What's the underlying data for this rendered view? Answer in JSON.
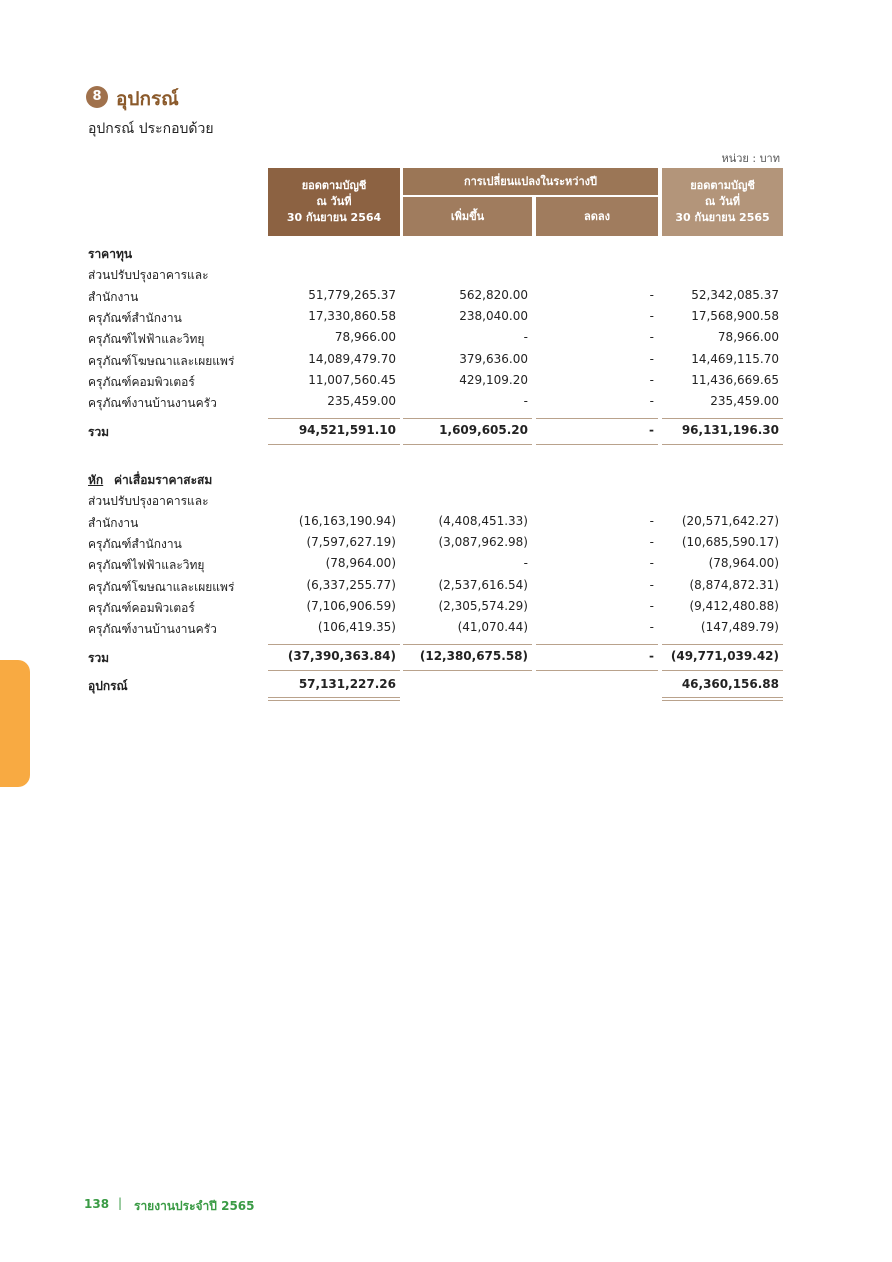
{
  "header": {
    "section_number": "8",
    "title": "อุปกรณ์",
    "subtitle": "อุปกรณ์ ประกอบด้วย",
    "unit": "หน่วย : บาท"
  },
  "table": {
    "columns": {
      "opening": [
        "ยอดตามบัญชี",
        "ณ วันที่",
        "30 กันยายน 2564"
      ],
      "change": "การเปลี่ยนแปลงในระหว่างปี",
      "increase": "เพิ่มขึ้น",
      "decrease": "ลดลง",
      "closing": [
        "ยอดตามบัญชี",
        "ณ วันที่",
        "30 กันยายน 2565"
      ]
    },
    "cost": {
      "title": "ราคาทุน",
      "group": "ส่วนปรับปรุงอาคารและ",
      "rows": [
        [
          "สำนักงาน",
          "51,779,265.37",
          "562,820.00",
          "-",
          "52,342,085.37"
        ],
        [
          "ครุภัณฑ์สำนักงาน",
          "17,330,860.58",
          "238,040.00",
          "-",
          "17,568,900.58"
        ],
        [
          "ครุภัณฑ์ไฟฟ้าและวิทยุ",
          "78,966.00",
          "-",
          "-",
          "78,966.00"
        ],
        [
          "ครุภัณฑ์โฆษณาและเผยแพร่",
          "14,089,479.70",
          "379,636.00",
          "-",
          "14,469,115.70"
        ],
        [
          "ครุภัณฑ์คอมพิวเตอร์",
          "11,007,560.45",
          "429,109.20",
          "-",
          "11,436,669.65"
        ],
        [
          "ครุภัณฑ์งานบ้านงานครัว",
          "235,459.00",
          "-",
          "-",
          "235,459.00"
        ]
      ],
      "total": [
        "รวม",
        "94,521,591.10",
        "1,609,605.20",
        "-",
        "96,131,196.30"
      ]
    },
    "depreciation": {
      "prefix": "หัก",
      "title": "ค่าเสื่อมราคาสะสม",
      "group": "ส่วนปรับปรุงอาคารและ",
      "rows": [
        [
          "สำนักงาน",
          "(16,163,190.94)",
          "(4,408,451.33)",
          "-",
          "(20,571,642.27)"
        ],
        [
          "ครุภัณฑ์สำนักงาน",
          "(7,597,627.19)",
          "(3,087,962.98)",
          "-",
          "(10,685,590.17)"
        ],
        [
          "ครุภัณฑ์ไฟฟ้าและวิทยุ",
          "(78,964.00)",
          "-",
          "-",
          "(78,964.00)"
        ],
        [
          "ครุภัณฑ์โฆษณาและเผยแพร่",
          "(6,337,255.77)",
          "(2,537,616.54)",
          "-",
          "(8,874,872.31)"
        ],
        [
          "ครุภัณฑ์คอมพิวเตอร์",
          "(7,106,906.59)",
          "(2,305,574.29)",
          "-",
          "(9,412,480.88)"
        ],
        [
          "ครุภัณฑ์งานบ้านงานครัว",
          "(106,419.35)",
          "(41,070.44)",
          "-",
          "(147,489.79)"
        ]
      ],
      "total": [
        "รวม",
        "(37,390,363.84)",
        "(12,380,675.58)",
        "-",
        "(49,771,039.42)"
      ]
    },
    "net": [
      "อุปกรณ์",
      "57,131,227.26",
      null,
      null,
      "46,360,156.88"
    ]
  },
  "footer": {
    "page": "138",
    "report": "รายงานประจำปี 2565"
  }
}
